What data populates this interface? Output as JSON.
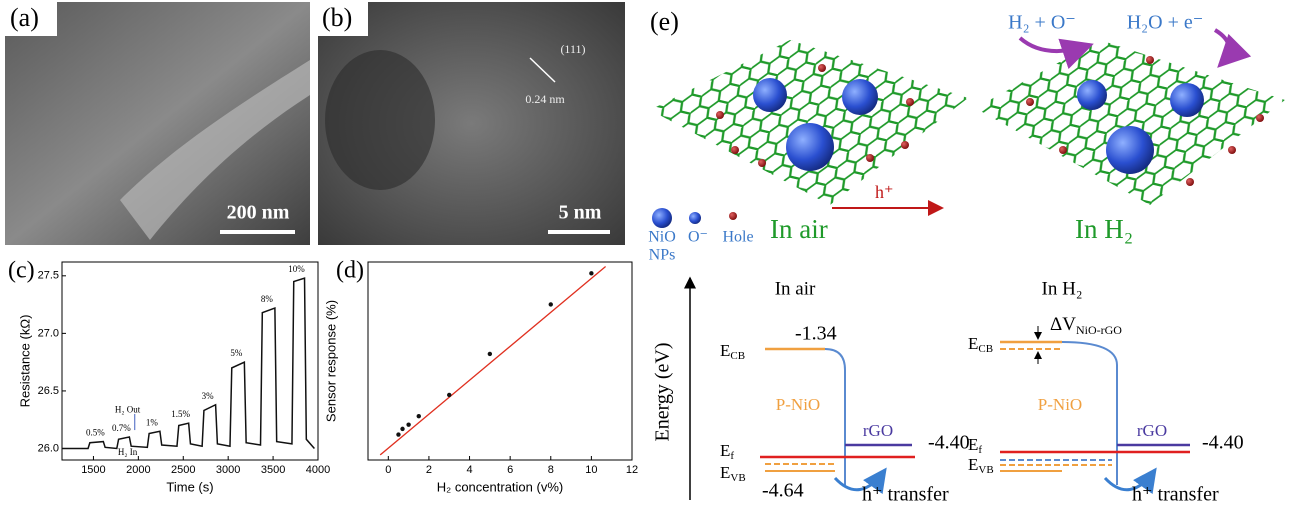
{
  "panel_labels": [
    "(a)",
    "(b)",
    "(c)",
    "(d)",
    "(e)"
  ],
  "sem_image": {
    "scale_bar": "200 nm"
  },
  "tem_image": {
    "scale_bar": "5 nm",
    "plane": "(111)",
    "spacing": "0.24 nm"
  },
  "chart_data": [
    {
      "type": "line",
      "y_label": "Resistance (kΩ)",
      "x_label": "Time (s)",
      "x": [
        1150,
        1440,
        1460,
        1610,
        1630,
        1760,
        1780,
        1900,
        1920,
        2100,
        2120,
        2240,
        2260,
        2430,
        2450,
        2560,
        2580,
        2710,
        2730,
        2860,
        2880,
        3020,
        3040,
        3180,
        3200,
        3360,
        3380,
        3520,
        3540,
        3710,
        3730,
        3850,
        3870,
        3960
      ],
      "values": [
        26.0,
        26.0,
        26.05,
        26.06,
        26.01,
        26.0,
        26.08,
        26.1,
        26.02,
        26.01,
        26.13,
        26.15,
        26.03,
        26.02,
        26.2,
        26.22,
        26.04,
        26.02,
        26.33,
        26.38,
        26.04,
        26.02,
        26.7,
        26.75,
        26.05,
        26.03,
        27.18,
        27.22,
        26.06,
        26.04,
        27.45,
        27.48,
        26.08,
        26.0
      ],
      "color": "#111111",
      "xlim": [
        1150,
        4000
      ],
      "xticks": [
        1500,
        2000,
        2500,
        3000,
        3500,
        4000
      ],
      "ylim": [
        25.9,
        27.62
      ],
      "yticks": [
        {
          "value": 26,
          "label": "26.0"
        },
        26.5,
        {
          "value": 27,
          "label": "27.0"
        },
        27.5
      ],
      "annotations": [
        "0.5%",
        "0.7%",
        "1%",
        "1.5%",
        "3%",
        "5%",
        "8%",
        "10%"
      ],
      "markers": [
        "H₂ Out",
        "H₂ In"
      ]
    },
    {
      "type": "scatter",
      "y_label": "Sensor response (%)",
      "x_label": "H₂ concentration (v%)",
      "x": [
        0.5,
        0.7,
        1,
        1.5,
        3,
        5,
        8,
        10
      ],
      "values": [
        0.3,
        0.5,
        0.65,
        0.95,
        1.7,
        3.15,
        4.9,
        6.0
      ],
      "color": "#111111",
      "fit": {
        "color": "#e03020",
        "x": [
          -0.4,
          10.7
        ],
        "values": [
          -0.42,
          6.24
        ]
      },
      "xlim": [
        -1,
        12
      ],
      "xticks": [
        0,
        2,
        4,
        6,
        8,
        10,
        12
      ],
      "ylim": [
        -0.6,
        6.4
      ]
    }
  ],
  "schematic": {
    "legend_nio": "NiO",
    "legend_nps": "NPs",
    "legend_o": "O⁻",
    "legend_hole": "Hole",
    "in_air": "In air",
    "transfer": "h⁺",
    "in_h2": "In H₂",
    "reaction_left": "H₂ + O⁻",
    "reaction_right": "H₂O + e⁻"
  },
  "energy_diagram": {
    "axis": "Energy (eV)",
    "left_title": "In air",
    "right_title": "In H₂",
    "ecb": {
      "main": "E",
      "sub": "CB"
    },
    "ef": {
      "main": "E",
      "sub": "f"
    },
    "evb": {
      "main": "E",
      "sub": "VB"
    },
    "cb_value": "-1.34",
    "vb_value": "-4.64",
    "rgo_value": "-4.40",
    "pnio": "P-NiO",
    "rgo": "rGO",
    "delta": {
      "main": "ΔV",
      "sub": "NiO-rGO"
    },
    "hole_transfer": "h⁺ transfer"
  }
}
